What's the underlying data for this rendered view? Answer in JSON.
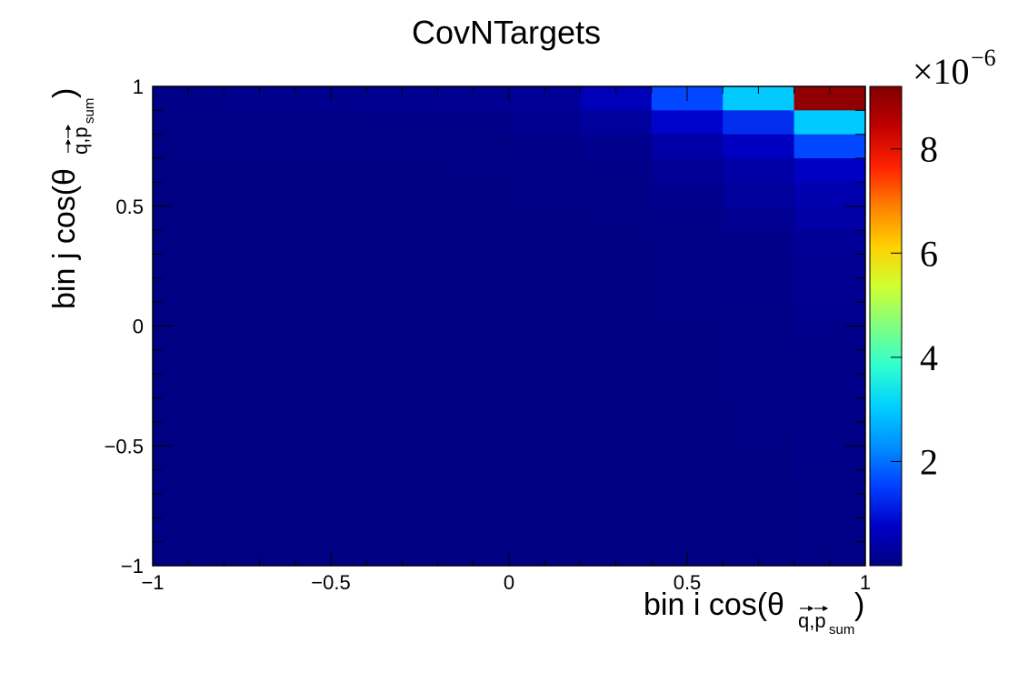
{
  "chart_data": {
    "type": "heatmap",
    "title": "CovNTargets",
    "xlabel": {
      "main": "bin i cos(θ",
      "sub": "q,p",
      "subsub": "sum",
      "close": ")"
    },
    "ylabel": {
      "main": "bin j cos(θ",
      "sub": "q,p",
      "subsub": "sum",
      "close": ")"
    },
    "xlim": [
      -1,
      1
    ],
    "ylim": [
      -1,
      1
    ],
    "x_ticks": [
      "−1",
      "−0.5",
      "0",
      "0.5",
      "1"
    ],
    "y_ticks": [
      "−1",
      "−0.5",
      "0",
      "0.5",
      "1"
    ],
    "x_edges": [
      -1,
      -0.8,
      -0.6,
      -0.4,
      -0.2,
      0,
      0.2,
      0.4,
      0.6,
      0.8,
      1
    ],
    "y_edges": [
      -1,
      -0.9,
      -0.8,
      -0.7,
      -0.6,
      -0.5,
      -0.4,
      -0.3,
      -0.2,
      -0.1,
      0,
      0.1,
      0.2,
      0.3,
      0.4,
      0.5,
      0.6,
      0.7,
      0.8,
      0.9,
      1
    ],
    "z_scale_label": "×10",
    "z_scale_exp": "−6",
    "z_range": [
      0,
      9.2
    ],
    "z_ticks": [
      "2",
      "4",
      "6",
      "8"
    ],
    "values_rows_top_to_bottom": [
      [
        0.08,
        0.15,
        0.15,
        0.17,
        0.18,
        0.25,
        0.6,
        1.6,
        3.0,
        9.0
      ],
      [
        0.05,
        0.06,
        0.07,
        0.08,
        0.1,
        0.15,
        0.3,
        0.8,
        1.3,
        3.0
      ],
      [
        0.04,
        0.04,
        0.04,
        0.04,
        0.05,
        0.08,
        0.15,
        0.4,
        0.7,
        1.6
      ],
      [
        0.03,
        0.03,
        0.03,
        0.03,
        0.04,
        0.05,
        0.08,
        0.25,
        0.4,
        0.7
      ],
      [
        0.02,
        0.02,
        0.02,
        0.02,
        0.03,
        0.04,
        0.06,
        0.15,
        0.3,
        0.5
      ],
      [
        0.02,
        0.02,
        0.02,
        0.02,
        0.02,
        0.03,
        0.04,
        0.1,
        0.2,
        0.4
      ],
      [
        0.02,
        0.02,
        0.02,
        0.02,
        0.02,
        0.02,
        0.03,
        0.06,
        0.12,
        0.25
      ],
      [
        0.02,
        0.02,
        0.02,
        0.02,
        0.02,
        0.02,
        0.02,
        0.05,
        0.1,
        0.2
      ],
      [
        0.02,
        0.02,
        0.02,
        0.02,
        0.02,
        0.02,
        0.02,
        0.04,
        0.08,
        0.18
      ],
      [
        0.02,
        0.02,
        0.02,
        0.02,
        0.02,
        0.02,
        0.02,
        0.04,
        0.07,
        0.15
      ],
      [
        0.02,
        0.02,
        0.02,
        0.02,
        0.02,
        0.02,
        0.02,
        0.03,
        0.06,
        0.12
      ],
      [
        0.02,
        0.02,
        0.02,
        0.02,
        0.02,
        0.02,
        0.02,
        0.03,
        0.05,
        0.1
      ],
      [
        0.02,
        0.02,
        0.02,
        0.02,
        0.02,
        0.02,
        0.02,
        0.03,
        0.05,
        0.1
      ],
      [
        0.02,
        0.02,
        0.02,
        0.02,
        0.02,
        0.02,
        0.02,
        0.02,
        0.04,
        0.09
      ],
      [
        0.02,
        0.02,
        0.02,
        0.02,
        0.02,
        0.02,
        0.02,
        0.02,
        0.04,
        0.08
      ],
      [
        0.02,
        0.02,
        0.02,
        0.02,
        0.02,
        0.02,
        0.02,
        0.02,
        0.03,
        0.08
      ],
      [
        0.02,
        0.02,
        0.02,
        0.02,
        0.02,
        0.02,
        0.02,
        0.02,
        0.03,
        0.07
      ],
      [
        0.02,
        0.02,
        0.02,
        0.02,
        0.02,
        0.02,
        0.02,
        0.02,
        0.03,
        0.07
      ],
      [
        0.02,
        0.02,
        0.02,
        0.02,
        0.02,
        0.02,
        0.02,
        0.02,
        0.03,
        0.06
      ],
      [
        0.02,
        0.02,
        0.02,
        0.02,
        0.02,
        0.02,
        0.02,
        0.02,
        0.02,
        0.05
      ]
    ],
    "colormap": [
      "#000080",
      "#0000c8",
      "#0040ff",
      "#0090ff",
      "#00d0ff",
      "#30ffd0",
      "#80ff80",
      "#d0ff30",
      "#ffd000",
      "#ff8000",
      "#ff2000",
      "#c00000",
      "#800000"
    ],
    "grid": false,
    "legend": "none"
  }
}
